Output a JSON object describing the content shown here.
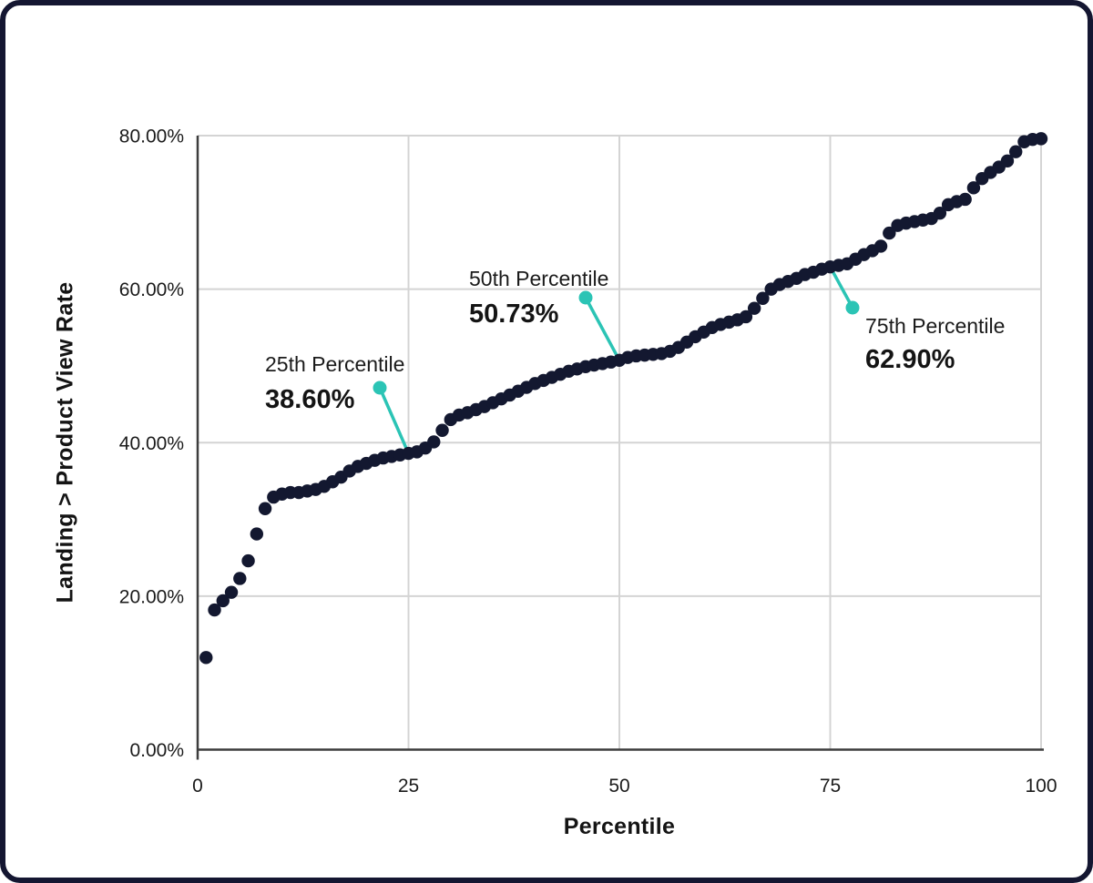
{
  "chart_data": {
    "type": "scatter",
    "title": "",
    "xlabel": "Percentile",
    "ylabel": "Landing > Product View Rate",
    "xlim": [
      0,
      100
    ],
    "ylim": [
      0,
      80
    ],
    "grid": true,
    "x_tick_values": [
      0,
      25,
      50,
      75,
      100
    ],
    "x_tick_labels": [
      "0",
      "25",
      "50",
      "75",
      "100"
    ],
    "y_tick_values": [
      0,
      20,
      40,
      60,
      80
    ],
    "y_tick_labels": [
      "0.00%",
      "20.00%",
      "40.00%",
      "60.00%",
      "80.00%"
    ],
    "point_color": "#131830",
    "accent_color": "#2bc4b5",
    "grid_color": "#d4d4d4",
    "axis_color": "#3d3d3d",
    "text_color": "#1b1b1b",
    "x": [
      1,
      2,
      3,
      4,
      5,
      6,
      7,
      8,
      9,
      10,
      11,
      12,
      13,
      14,
      15,
      16,
      17,
      18,
      19,
      20,
      21,
      22,
      23,
      24,
      25,
      26,
      27,
      28,
      29,
      30,
      31,
      32,
      33,
      34,
      35,
      36,
      37,
      38,
      39,
      40,
      41,
      42,
      43,
      44,
      45,
      46,
      47,
      48,
      49,
      50,
      51,
      52,
      53,
      54,
      55,
      56,
      57,
      58,
      59,
      60,
      61,
      62,
      63,
      64,
      65,
      66,
      67,
      68,
      69,
      70,
      71,
      72,
      73,
      74,
      75,
      76,
      77,
      78,
      79,
      80,
      81,
      82,
      83,
      84,
      85,
      86,
      87,
      88,
      89,
      90,
      91,
      92,
      93,
      94,
      95,
      96,
      97,
      98,
      99,
      100
    ],
    "y": [
      12.0,
      18.2,
      19.4,
      20.5,
      22.3,
      24.6,
      28.1,
      31.4,
      32.9,
      33.3,
      33.5,
      33.5,
      33.7,
      33.9,
      34.3,
      34.9,
      35.5,
      36.3,
      36.9,
      37.3,
      37.7,
      38.0,
      38.2,
      38.4,
      38.6,
      38.8,
      39.3,
      40.1,
      41.6,
      43.0,
      43.6,
      43.9,
      44.3,
      44.7,
      45.2,
      45.7,
      46.2,
      46.7,
      47.2,
      47.7,
      48.1,
      48.5,
      48.9,
      49.3,
      49.6,
      49.9,
      50.1,
      50.3,
      50.5,
      50.73,
      51.1,
      51.3,
      51.4,
      51.5,
      51.6,
      51.9,
      52.4,
      53.1,
      53.8,
      54.4,
      55.0,
      55.4,
      55.7,
      56.0,
      56.4,
      57.5,
      58.8,
      60.0,
      60.6,
      61.0,
      61.4,
      61.9,
      62.2,
      62.6,
      62.9,
      63.1,
      63.3,
      63.9,
      64.5,
      65.0,
      65.6,
      67.3,
      68.3,
      68.6,
      68.8,
      69.0,
      69.2,
      69.9,
      71.0,
      71.4,
      71.7,
      73.2,
      74.4,
      75.2,
      75.9,
      76.7,
      77.9,
      79.2,
      79.5,
      79.6
    ],
    "annotations": [
      {
        "label": "25th Percentile",
        "value": "38.60%",
        "x": 25,
        "y": 38.6
      },
      {
        "label": "50th Percentile",
        "value": "50.73%",
        "x": 50,
        "y": 50.73
      },
      {
        "label": "75th Percentile",
        "value": "62.90%",
        "x": 75,
        "y": 62.9
      }
    ]
  }
}
